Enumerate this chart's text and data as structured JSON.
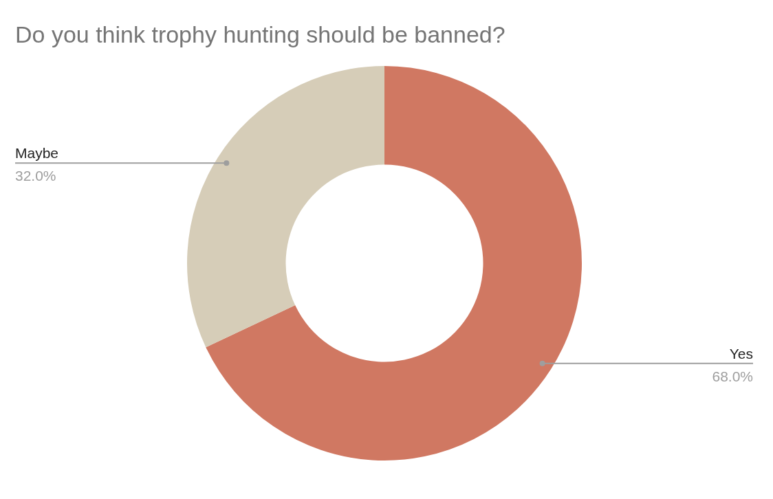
{
  "chart_data": {
    "type": "donut",
    "title": "Do you think trophy hunting should be banned?",
    "categories": [
      "Yes",
      "Maybe"
    ],
    "values": [
      68,
      32
    ],
    "colors": [
      "#d07862",
      "#d6cdb8"
    ],
    "value_labels": [
      "68.0%",
      "32.0%"
    ],
    "legend": false
  }
}
